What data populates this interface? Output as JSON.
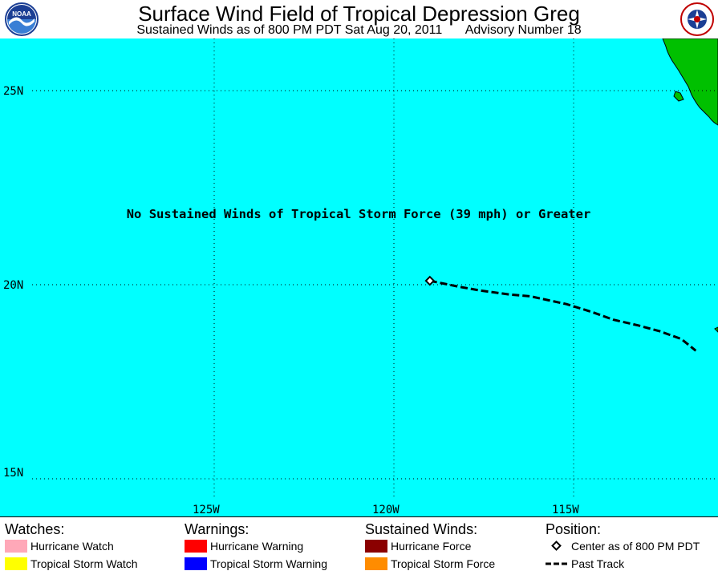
{
  "header": {
    "title": "Surface Wind Field of Tropical Depression Greg",
    "subtitle_left": "Sustained Winds as of 800 PM PDT Sat Aug 20, 2011",
    "subtitle_right": "Advisory Number 18",
    "left_logo_text": "NOAA",
    "right_logo_icon": "nws-logo-icon"
  },
  "map": {
    "message": "No Sustained Winds of Tropical Storm Force (39 mph) or Greater",
    "lat_labels": [
      "25N",
      "20N",
      "15N"
    ],
    "lon_labels": [
      "125W",
      "120W",
      "115W"
    ],
    "colors": {
      "ocean": "#00ffff",
      "land": "#00c000",
      "track": "#000000",
      "grid": "#000000"
    },
    "center": {
      "lat": 20.1,
      "lon": -119.0
    },
    "past_track": [
      [
        20.1,
        -119.0
      ],
      [
        19.95,
        -118.2
      ],
      [
        19.85,
        -117.6
      ],
      [
        19.75,
        -116.8
      ],
      [
        19.7,
        -116.2
      ],
      [
        19.6,
        -115.7
      ],
      [
        19.5,
        -115.2
      ],
      [
        19.3,
        -114.5
      ],
      [
        19.1,
        -113.9
      ],
      [
        18.95,
        -113.2
      ],
      [
        18.8,
        -112.6
      ],
      [
        18.6,
        -112.0
      ],
      [
        18.3,
        -111.6
      ]
    ]
  },
  "legend": {
    "watches": {
      "heading": "Watches:",
      "items": [
        {
          "label": "Hurricane Watch",
          "color": "#ffa8b8"
        },
        {
          "label": "Tropical Storm Watch",
          "color": "#ffff00"
        }
      ]
    },
    "warnings": {
      "heading": "Warnings:",
      "items": [
        {
          "label": "Hurricane Warning",
          "color": "#ff0000"
        },
        {
          "label": "Tropical Storm Warning",
          "color": "#0000ff"
        }
      ]
    },
    "winds": {
      "heading": "Sustained Winds:",
      "items": [
        {
          "label": "Hurricane Force",
          "color": "#8b0000"
        },
        {
          "label": "Tropical Storm Force",
          "color": "#ff8c00"
        }
      ]
    },
    "position": {
      "heading": "Position:",
      "center_label": "Center as of 800 PM PDT",
      "track_label": "Past Track"
    }
  }
}
